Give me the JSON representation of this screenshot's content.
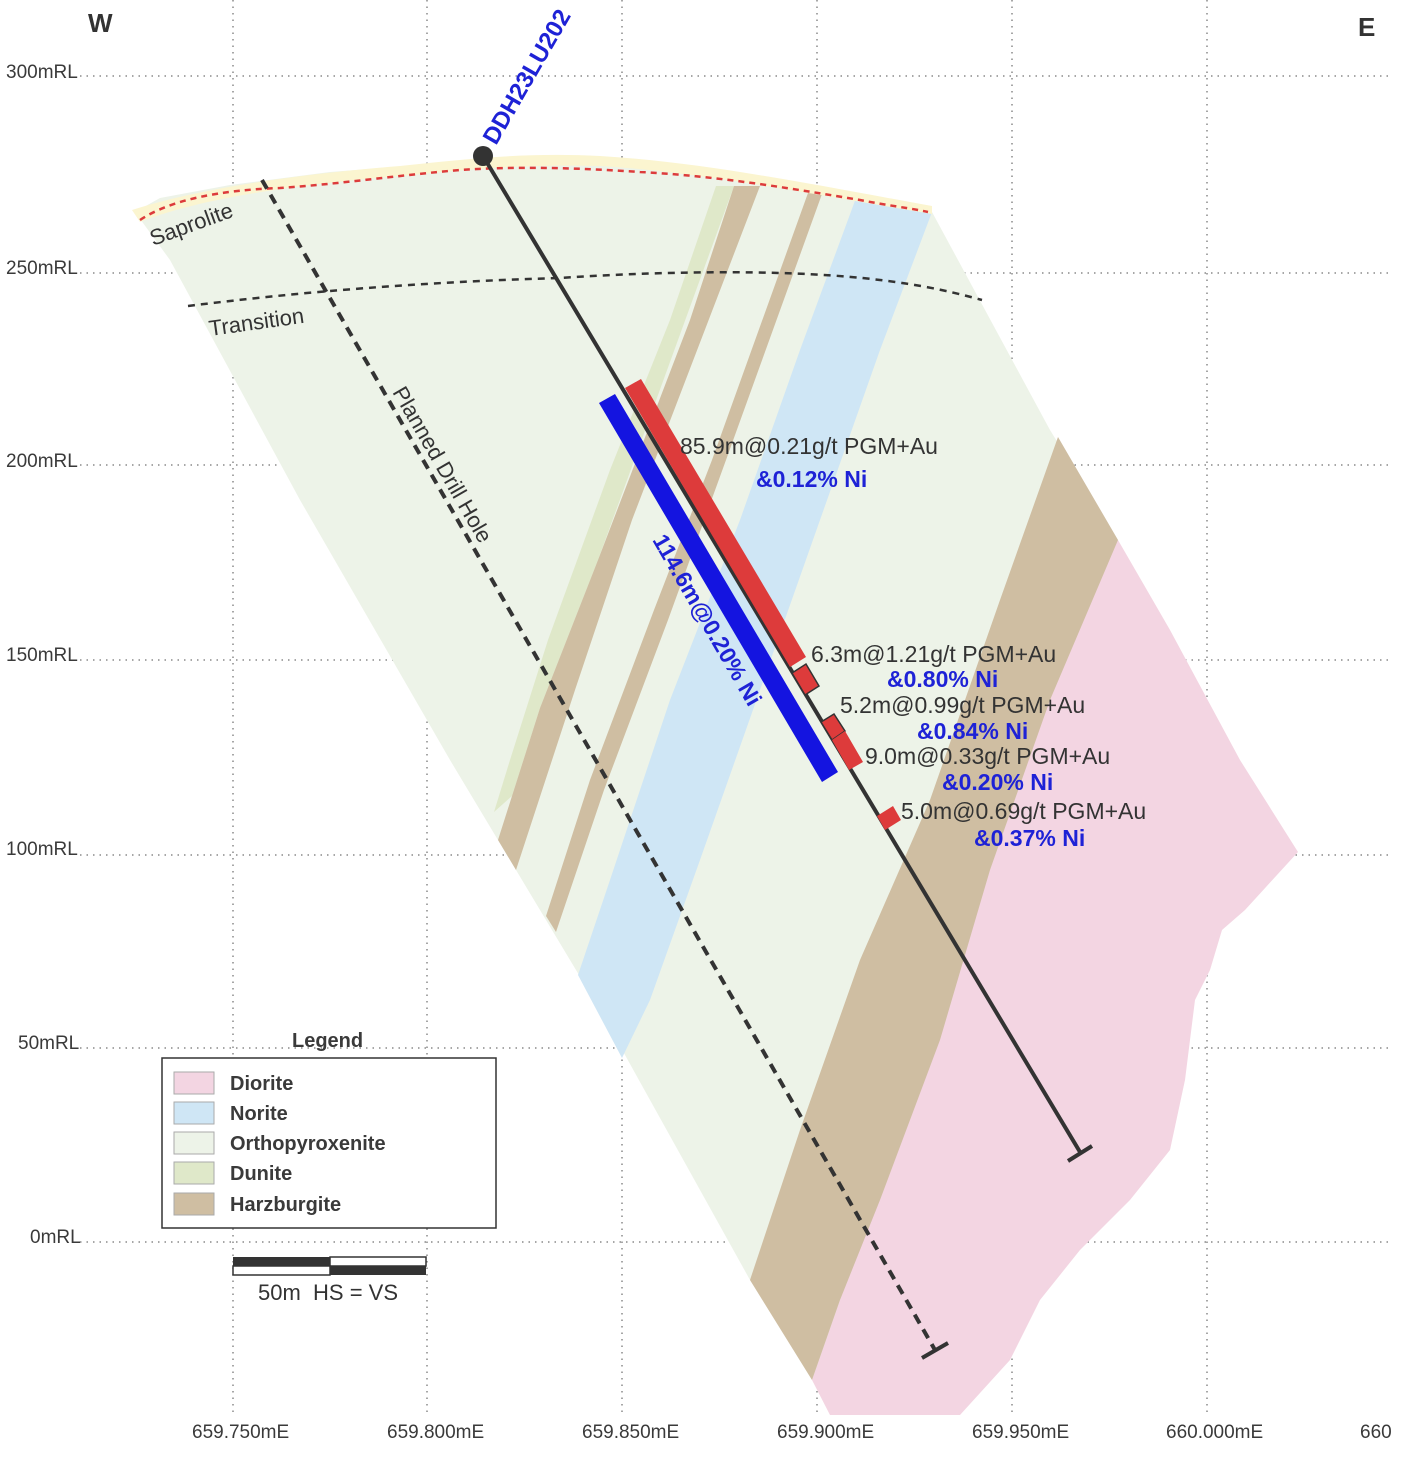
{
  "compass": {
    "west": "W",
    "east": "E"
  },
  "rl_labels": [
    "300mRL",
    "250mRL",
    "200mRL",
    "150mRL",
    "100mRL",
    "50mRL",
    "0mRL"
  ],
  "e_labels": [
    "659.750mE",
    "659.800mE",
    "659.850mE",
    "659.900mE",
    "659.950mE",
    "660.000mE",
    "660"
  ],
  "zones": {
    "saprolite": "Saprolite",
    "transition": "Transition"
  },
  "planned_hole_label": "Planned Drill Hole",
  "drill_hole_id": "DDH23LU202",
  "intercepts": [
    {
      "grade": "85.9m@0.21g/t PGM+Au",
      "ni": "&0.12% Ni"
    },
    {
      "grade": "6.3m@1.21g/t PGM+Au",
      "ni": "&0.80% Ni"
    },
    {
      "grade": "5.2m@0.99g/t PGM+Au",
      "ni": "&0.84% Ni"
    },
    {
      "grade": "9.0m@0.33g/t PGM+Au",
      "ni": "&0.20% Ni"
    },
    {
      "grade": "5.0m@0.69g/t PGM+Au",
      "ni": "&0.37% Ni"
    }
  ],
  "ni_intercept": "114.6m@0.20% Ni",
  "legend": {
    "title": "Legend",
    "items": [
      {
        "name": "Diorite",
        "color": "#f3d5e2"
      },
      {
        "name": "Norite",
        "color": "#cfe6f5"
      },
      {
        "name": "Orthopyroxenite",
        "color": "#edf3e8"
      },
      {
        "name": "Dunite",
        "color": "#dfe8c9"
      },
      {
        "name": "Harzburgite",
        "color": "#cfbea2"
      }
    ]
  },
  "scale": {
    "label": "50m  HS = VS"
  },
  "colors": {
    "grade_bar": "#dd3b3b",
    "ni_bar": "#1414e0",
    "hole_line": "#333333",
    "saprolite_fill": "#fbf5d0",
    "saprolite_line": "#dd3b3b"
  }
}
